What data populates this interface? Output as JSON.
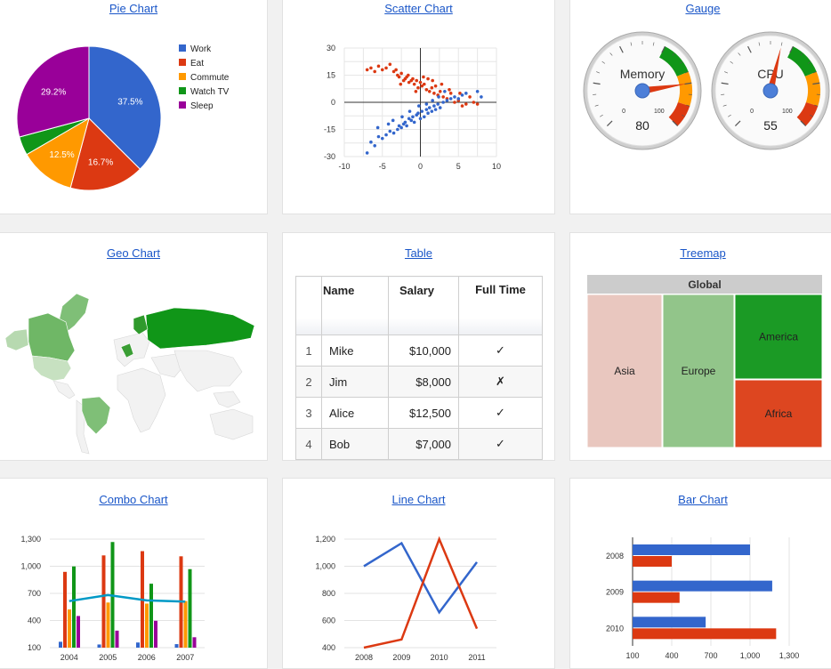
{
  "panels": {
    "pie": {
      "title": "Pie Chart"
    },
    "scatter": {
      "title": "Scatter Chart"
    },
    "gauge": {
      "title": "Gauge"
    },
    "geo": {
      "title": "Geo Chart"
    },
    "table": {
      "title": "Table"
    },
    "treemap": {
      "title": "Treemap"
    },
    "combo": {
      "title": "Combo Chart"
    },
    "line": {
      "title": "Line Chart"
    },
    "bar": {
      "title": "Bar Chart"
    }
  },
  "colors": {
    "blue": "#3366cc",
    "red": "#dc3912",
    "orange": "#ff9900",
    "green": "#109618",
    "purple": "#990099",
    "teal": "#0099c6"
  },
  "table": {
    "headers": [
      "",
      "Name",
      "Salary",
      "Full Time"
    ],
    "rows": [
      {
        "num": "1",
        "name": "Mike",
        "salary": "$10,000",
        "full_time": "✓"
      },
      {
        "num": "2",
        "name": "Jim",
        "salary": "$8,000",
        "full_time": "✗"
      },
      {
        "num": "3",
        "name": "Alice",
        "salary": "$12,500",
        "full_time": "✓"
      },
      {
        "num": "4",
        "name": "Bob",
        "salary": "$7,000",
        "full_time": "✓"
      }
    ]
  },
  "gauges": [
    {
      "label": "Memory",
      "value": 80,
      "min_label": "0",
      "max_label": "100"
    },
    {
      "label": "CPU",
      "value": 55,
      "min_label": "0",
      "max_label": "100"
    }
  ],
  "geo": {
    "regions": [
      "Canada",
      "USA",
      "Brazil",
      "Russia",
      "Greenland"
    ]
  },
  "chart_data": [
    {
      "type": "pie",
      "slices": [
        {
          "label": "Work",
          "value": 37.5,
          "color": "#3366cc",
          "text": "37.5%"
        },
        {
          "label": "Eat",
          "value": 16.7,
          "color": "#dc3912",
          "text": "16.7%"
        },
        {
          "label": "Commute",
          "value": 12.5,
          "color": "#ff9900",
          "text": "12.5%"
        },
        {
          "label": "Watch TV",
          "value": 4.2,
          "color": "#109618",
          "text": ""
        },
        {
          "label": "Sleep",
          "value": 29.2,
          "color": "#990099",
          "text": "29.2%"
        }
      ],
      "legend": "right"
    },
    {
      "type": "scatter",
      "xlim": [
        -10,
        10
      ],
      "ylim": [
        -30,
        30
      ],
      "xticks": [
        "-10",
        "-5",
        "0",
        "5",
        "10"
      ],
      "yticks": [
        "30",
        "15",
        "0",
        "-15",
        "-30"
      ],
      "series": [
        {
          "color": "#dc3912",
          "points": [
            [
              -7,
              18
            ],
            [
              -6.5,
              19
            ],
            [
              -6,
              17
            ],
            [
              -5.5,
              20
            ],
            [
              -5,
              18
            ],
            [
              -4.5,
              19
            ],
            [
              -4,
              21
            ],
            [
              -3.5,
              17
            ],
            [
              -3,
              15
            ],
            [
              -2.8,
              14
            ],
            [
              -2.5,
              16
            ],
            [
              -2.2,
              12
            ],
            [
              -2,
              13
            ],
            [
              -1.8,
              14
            ],
            [
              -1.5,
              11
            ],
            [
              -1.2,
              12
            ],
            [
              -1,
              13
            ],
            [
              -0.8,
              10
            ],
            [
              -0.5,
              12
            ],
            [
              -0.3,
              8
            ],
            [
              0,
              11
            ],
            [
              0.2,
              9
            ],
            [
              0.5,
              10
            ],
            [
              0.8,
              7
            ],
            [
              1,
              13
            ],
            [
              1.2,
              6
            ],
            [
              1.5,
              8
            ],
            [
              1.8,
              5
            ],
            [
              2,
              9
            ],
            [
              2.3,
              4
            ],
            [
              2.6,
              6
            ],
            [
              3,
              3
            ],
            [
              3.5,
              2
            ],
            [
              4,
              5
            ],
            [
              4.5,
              0
            ],
            [
              5,
              1
            ],
            [
              5.5,
              -2
            ],
            [
              6,
              -1
            ],
            [
              7,
              0
            ],
            [
              7.5,
              -1
            ],
            [
              -3.2,
              18
            ],
            [
              -1.6,
              15
            ],
            [
              0.4,
              14
            ],
            [
              1.6,
              12
            ],
            [
              2.8,
              10
            ],
            [
              3.8,
              7
            ],
            [
              5.2,
              5
            ],
            [
              6.5,
              3
            ],
            [
              -2.6,
              10
            ],
            [
              -0.6,
              6
            ]
          ]
        },
        {
          "color": "#3366cc",
          "points": [
            [
              -7,
              -28
            ],
            [
              -6.5,
              -22
            ],
            [
              -6,
              -24
            ],
            [
              -5.5,
              -19
            ],
            [
              -5,
              -20
            ],
            [
              -4.5,
              -18
            ],
            [
              -4,
              -16
            ],
            [
              -3.5,
              -17
            ],
            [
              -3,
              -15
            ],
            [
              -2.8,
              -13
            ],
            [
              -2.5,
              -14
            ],
            [
              -2.2,
              -12
            ],
            [
              -2,
              -11
            ],
            [
              -1.8,
              -13
            ],
            [
              -1.5,
              -9
            ],
            [
              -1.2,
              -10
            ],
            [
              -1,
              -8
            ],
            [
              -0.8,
              -11
            ],
            [
              -0.5,
              -7
            ],
            [
              -0.3,
              -6
            ],
            [
              0,
              -9
            ],
            [
              0.2,
              -5
            ],
            [
              0.5,
              -8
            ],
            [
              0.8,
              -4
            ],
            [
              1,
              -6
            ],
            [
              1.2,
              -3
            ],
            [
              1.5,
              -5
            ],
            [
              1.8,
              -2
            ],
            [
              2,
              -4
            ],
            [
              2.3,
              -1
            ],
            [
              2.6,
              -3
            ],
            [
              3,
              0
            ],
            [
              3.5,
              1
            ],
            [
              4,
              2
            ],
            [
              4.5,
              3
            ],
            [
              5,
              2
            ],
            [
              5.5,
              4
            ],
            [
              6,
              5
            ],
            [
              7.5,
              6
            ],
            [
              8,
              3
            ],
            [
              -4.2,
              -12
            ],
            [
              -3.6,
              -10
            ],
            [
              -2.4,
              -8
            ],
            [
              -1.4,
              -5
            ],
            [
              -0.2,
              -2
            ],
            [
              0.8,
              -1
            ],
            [
              1.6,
              1
            ],
            [
              2.4,
              3
            ],
            [
              -5.6,
              -14
            ],
            [
              3.2,
              6
            ]
          ]
        }
      ]
    },
    {
      "type": "bar",
      "subtype": "combo",
      "categories": [
        "2004",
        "2005",
        "2006",
        "2007"
      ],
      "ylim": [
        100,
        1300
      ],
      "yticks": [
        "100",
        "400",
        "700",
        "1,000",
        "1,300"
      ],
      "series": [
        {
          "color": "#3366cc",
          "values": [
            165,
            135,
            157,
            139
          ]
        },
        {
          "color": "#dc3912",
          "values": [
            938,
            1120,
            1167,
            1110
          ]
        },
        {
          "color": "#ff9900",
          "values": [
            522,
            599,
            587,
            615
          ]
        },
        {
          "color": "#109618",
          "values": [
            998,
            1268,
            807,
            968
          ]
        },
        {
          "color": "#990099",
          "values": [
            450,
            288,
            397,
            215
          ]
        }
      ],
      "line": {
        "color": "#0099c6",
        "values": [
          614.6,
          682,
          623,
          609.4
        ]
      }
    },
    {
      "type": "line",
      "categories": [
        "2008",
        "2009",
        "2010",
        "2011"
      ],
      "ylim": [
        400,
        1200
      ],
      "yticks": [
        "400",
        "600",
        "800",
        "1,000",
        "1,200"
      ],
      "series": [
        {
          "color": "#3366cc",
          "values": [
            1000,
            1170,
            660,
            1030
          ]
        },
        {
          "color": "#dc3912",
          "values": [
            400,
            460,
            1200,
            540
          ]
        }
      ]
    },
    {
      "type": "bar",
      "orientation": "horizontal",
      "categories": [
        "2008",
        "2009",
        "2010"
      ],
      "xlim": [
        100,
        1300
      ],
      "xticks": [
        "100",
        "400",
        "700",
        "1,000",
        "1,300"
      ],
      "series": [
        {
          "color": "#3366cc",
          "values": [
            1000,
            1170,
            660
          ]
        },
        {
          "color": "#dc3912",
          "values": [
            400,
            460,
            1200
          ]
        }
      ]
    },
    {
      "type": "treemap",
      "root": "Global",
      "nodes": [
        {
          "label": "Asia",
          "color": "#e9c7bf"
        },
        {
          "label": "Europe",
          "color": "#92c58a"
        },
        {
          "label": "America",
          "color": "#1b9a25"
        },
        {
          "label": "Africa",
          "color": "#dd4620"
        }
      ]
    }
  ]
}
